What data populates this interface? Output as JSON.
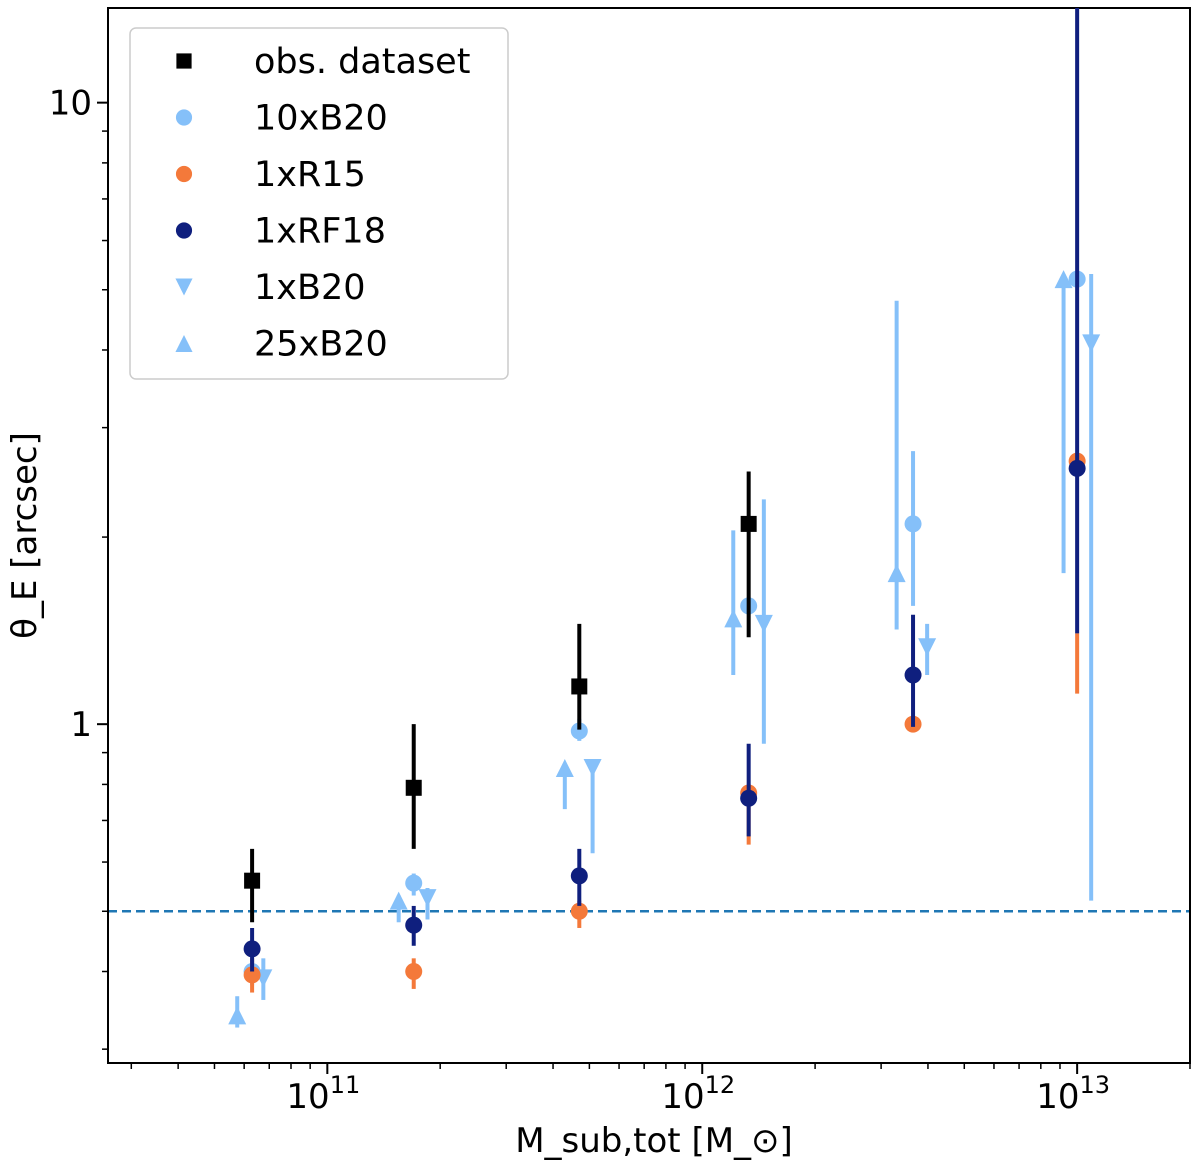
{
  "chart_data": {
    "type": "scatter",
    "xscale": "log",
    "yscale": "log",
    "xlim": [
      26000000000.0,
      20000000000000.0
    ],
    "ylim": [
      0.285,
      14.2
    ],
    "xlabel": "M_sub,tot [M_⊙]",
    "ylabel": "θ_E [arcsec]",
    "xticks": [
      {
        "value": 100000000000.0,
        "base": "10",
        "exp": "11"
      },
      {
        "value": 1000000000000.0,
        "base": "10",
        "exp": "12"
      },
      {
        "value": 10000000000000.0,
        "base": "10",
        "exp": "13"
      }
    ],
    "yticks": [
      {
        "value": 1,
        "label": "1"
      },
      {
        "value": 10,
        "label": "10"
      }
    ],
    "reference_line": {
      "y": 0.5,
      "style": "dashed",
      "color": "#1f77b4"
    },
    "legend_position": "top-left",
    "series": [
      {
        "name": "obs. dataset",
        "marker": "square",
        "color": "#000000",
        "points": [
          {
            "x": 63000000000.0,
            "y": 0.56,
            "lo": 0.48,
            "hi": 0.63
          },
          {
            "x": 170000000000.0,
            "y": 0.79,
            "lo": 0.63,
            "hi": 1.0
          },
          {
            "x": 470000000000.0,
            "y": 1.15,
            "lo": 0.98,
            "hi": 1.45
          },
          {
            "x": 1330000000000.0,
            "y": 2.1,
            "lo": 1.38,
            "hi": 2.55
          }
        ]
      },
      {
        "name": "10xB20",
        "marker": "circle",
        "color": "#85c0f9",
        "points": [
          {
            "x": 63000000000.0,
            "y": 0.4,
            "lo": 0.38,
            "hi": 0.42
          },
          {
            "x": 170000000000.0,
            "y": 0.555,
            "lo": 0.53,
            "hi": 0.575
          },
          {
            "x": 470000000000.0,
            "y": 0.975,
            "lo": 0.94,
            "hi": 1.02
          },
          {
            "x": 1330000000000.0,
            "y": 1.55,
            "lo": 1.5,
            "hi": 1.6
          },
          {
            "x": 3650000000000.0,
            "y": 2.1,
            "lo": 1.55,
            "hi": 2.75
          },
          {
            "x": 10000000000000.0,
            "y": 5.2,
            "lo": 5.1,
            "hi": 5.3
          }
        ]
      },
      {
        "name": "1xR15",
        "marker": "circle",
        "color": "#f4793a",
        "points": [
          {
            "x": 63000000000.0,
            "y": 0.395,
            "lo": 0.37,
            "hi": 0.42
          },
          {
            "x": 170000000000.0,
            "y": 0.4,
            "lo": 0.375,
            "hi": 0.42
          },
          {
            "x": 470000000000.0,
            "y": 0.5,
            "lo": 0.47,
            "hi": 0.52
          },
          {
            "x": 1330000000000.0,
            "y": 0.775,
            "lo": 0.64,
            "hi": 0.8
          },
          {
            "x": 3650000000000.0,
            "y": 1.0,
            "lo": 0.975,
            "hi": 1.02
          },
          {
            "x": 10000000000000.0,
            "y": 2.65,
            "lo": 1.12,
            "hi": 1.4
          }
        ]
      },
      {
        "name": "1xRF18",
        "marker": "circle",
        "color": "#0f1f7e",
        "points": [
          {
            "x": 63000000000.0,
            "y": 0.435,
            "lo": 0.4,
            "hi": 0.47
          },
          {
            "x": 170000000000.0,
            "y": 0.475,
            "lo": 0.44,
            "hi": 0.51
          },
          {
            "x": 470000000000.0,
            "y": 0.57,
            "lo": 0.51,
            "hi": 0.63
          },
          {
            "x": 1330000000000.0,
            "y": 0.76,
            "lo": 0.66,
            "hi": 0.93
          },
          {
            "x": 3650000000000.0,
            "y": 1.2,
            "lo": 0.99,
            "hi": 1.5
          },
          {
            "x": 10000000000000.0,
            "y": 2.58,
            "lo": 1.4,
            "hi": 14.2
          }
        ]
      },
      {
        "name": "1xB20",
        "marker": "triangle-down",
        "color": "#85c0f9",
        "points": [
          {
            "x": 67500000000.0,
            "y": 0.39,
            "lo": 0.36,
            "hi": 0.42
          },
          {
            "x": 185000000000.0,
            "y": 0.525,
            "lo": 0.485,
            "hi": 0.545
          },
          {
            "x": 510000000000.0,
            "y": 0.85,
            "lo": 0.62,
            "hi": 0.84
          },
          {
            "x": 1460000000000.0,
            "y": 1.45,
            "lo": 0.93,
            "hi": 2.3
          },
          {
            "x": 3980000000000.0,
            "y": 1.33,
            "lo": 1.2,
            "hi": 1.45
          },
          {
            "x": 10900000000000.0,
            "y": 4.1,
            "lo": 0.52,
            "hi": 5.3
          }
        ]
      },
      {
        "name": "25xB20",
        "marker": "triangle-up",
        "color": "#85c0f9",
        "points": [
          {
            "x": 57500000000.0,
            "y": 0.34,
            "lo": 0.325,
            "hi": 0.365
          },
          {
            "x": 155000000000.0,
            "y": 0.52,
            "lo": 0.48,
            "hi": 0.53
          },
          {
            "x": 430000000000.0,
            "y": 0.85,
            "lo": 0.73,
            "hi": 0.85
          },
          {
            "x": 1210000000000.0,
            "y": 1.48,
            "lo": 1.2,
            "hi": 2.05
          },
          {
            "x": 3300000000000.0,
            "y": 1.75,
            "lo": 1.42,
            "hi": 4.8
          },
          {
            "x": 9200000000000.0,
            "y": 5.2,
            "lo": 1.75,
            "hi": 5.3
          }
        ]
      }
    ]
  }
}
